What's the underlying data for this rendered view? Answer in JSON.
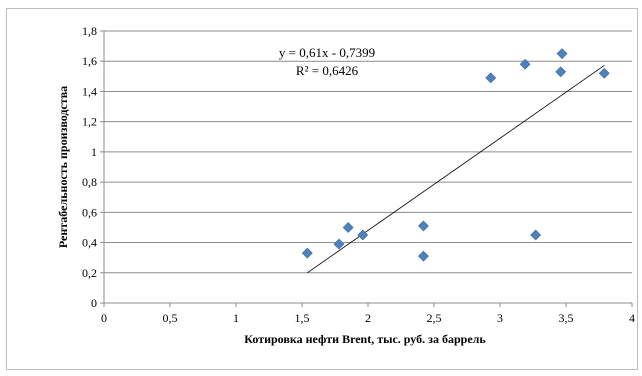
{
  "chart_data": {
    "type": "scatter",
    "title": "",
    "xlabel": "Котировка нефти Brent, тыс. руб. за баррель",
    "ylabel": "Рентабельность производства",
    "xlim": [
      0,
      4
    ],
    "ylim": [
      0,
      1.8
    ],
    "x_ticks": [
      "0",
      "0,5",
      "1",
      "1,5",
      "2",
      "2,5",
      "3",
      "3,5",
      "4"
    ],
    "y_ticks": [
      "0",
      "0,2",
      "0,4",
      "0,6",
      "0,8",
      "1",
      "1,2",
      "1,4",
      "1,6",
      "1,8"
    ],
    "grid": "horizontal",
    "legend": "none",
    "marker_color": "#4f81bd",
    "points": [
      {
        "x": 1.54,
        "y": 0.33
      },
      {
        "x": 1.78,
        "y": 0.39
      },
      {
        "x": 1.85,
        "y": 0.5
      },
      {
        "x": 1.96,
        "y": 0.45
      },
      {
        "x": 2.42,
        "y": 0.51
      },
      {
        "x": 2.42,
        "y": 0.31
      },
      {
        "x": 2.93,
        "y": 1.49
      },
      {
        "x": 3.19,
        "y": 1.58
      },
      {
        "x": 3.27,
        "y": 0.45
      },
      {
        "x": 3.46,
        "y": 1.53
      },
      {
        "x": 3.47,
        "y": 1.65
      },
      {
        "x": 3.79,
        "y": 1.52
      }
    ],
    "trendline": {
      "slope": 0.61,
      "intercept": -0.7399,
      "x_range": [
        1.54,
        3.79
      ],
      "equation": "y = 0,61x - 0,7399",
      "r_squared": "R² = 0,6426"
    }
  }
}
